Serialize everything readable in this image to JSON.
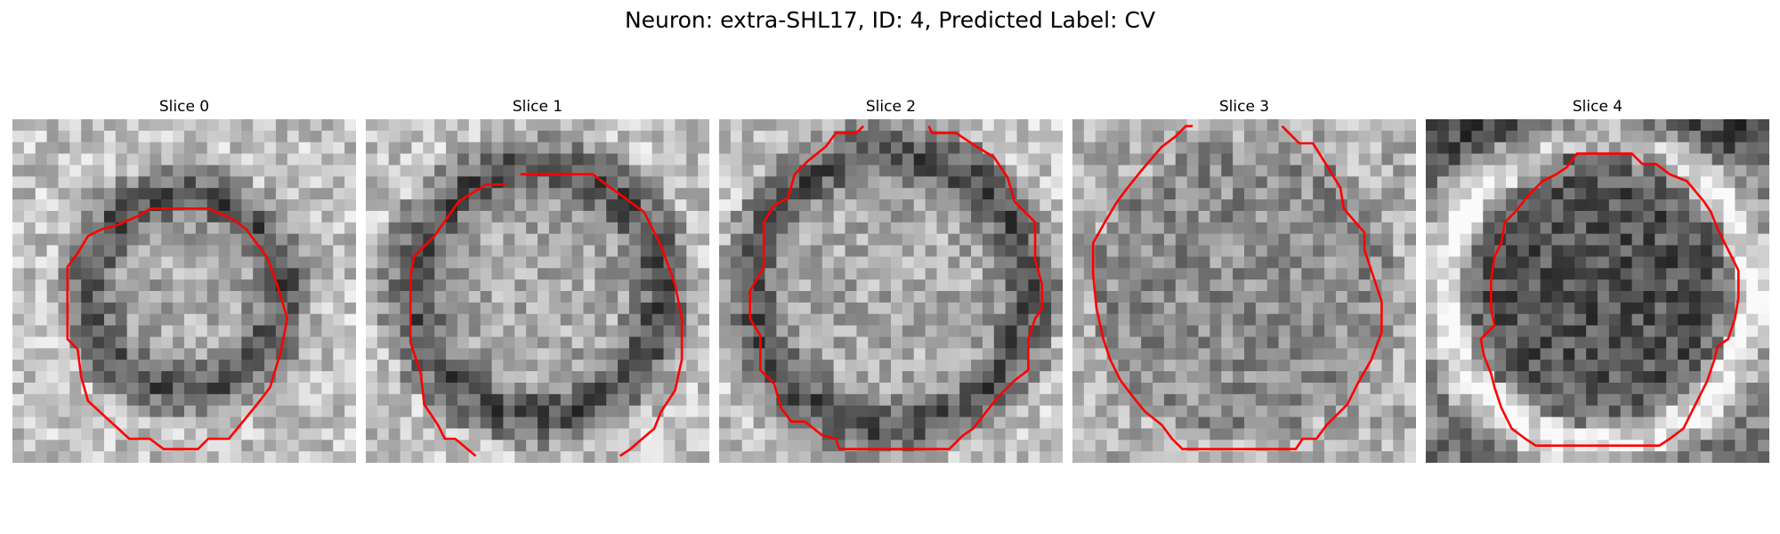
{
  "figure": {
    "title": "Neuron: extra-SHL17, ID: 4, Predicted Label: CV",
    "grid_size": 30,
    "contour_color": "#ff0000",
    "panels": [
      {
        "title": "Slice 0",
        "texture": "ring-dark-small",
        "ring_radius": 0.28,
        "seed": 11,
        "contour": [
          [
            0.4,
            0.26
          ],
          [
            0.57,
            0.26
          ],
          [
            0.64,
            0.29
          ],
          [
            0.68,
            0.32
          ],
          [
            0.74,
            0.4
          ],
          [
            0.77,
            0.48
          ],
          [
            0.8,
            0.58
          ],
          [
            0.78,
            0.68
          ],
          [
            0.75,
            0.78
          ],
          [
            0.72,
            0.82
          ],
          [
            0.63,
            0.93
          ],
          [
            0.57,
            0.93
          ],
          [
            0.54,
            0.96
          ],
          [
            0.44,
            0.96
          ],
          [
            0.4,
            0.93
          ],
          [
            0.34,
            0.93
          ],
          [
            0.22,
            0.82
          ],
          [
            0.2,
            0.75
          ],
          [
            0.19,
            0.67
          ],
          [
            0.16,
            0.64
          ],
          [
            0.16,
            0.43
          ],
          [
            0.19,
            0.39
          ],
          [
            0.22,
            0.34
          ],
          [
            0.26,
            0.32
          ],
          [
            0.3,
            0.31
          ],
          [
            0.37,
            0.28
          ]
        ]
      },
      {
        "title": "Slice 1",
        "texture": "ring-dark-large",
        "ring_radius": 0.36,
        "seed": 23,
        "contour": [
          [
            0.45,
            0.16
          ],
          [
            0.66,
            0.16
          ],
          [
            0.7,
            0.19
          ],
          [
            0.81,
            0.27
          ],
          [
            0.86,
            0.37
          ],
          [
            0.9,
            0.48
          ],
          [
            0.92,
            0.58
          ],
          [
            0.92,
            0.7
          ],
          [
            0.9,
            0.79
          ],
          [
            0.86,
            0.85
          ],
          [
            0.84,
            0.9
          ],
          [
            0.77,
            0.96
          ],
          [
            0.74,
            0.98
          ]
        ],
        "contour_extra": [
          [
            0.32,
            0.98
          ],
          [
            0.26,
            0.93
          ],
          [
            0.23,
            0.93
          ],
          [
            0.21,
            0.89
          ],
          [
            0.17,
            0.83
          ],
          [
            0.16,
            0.74
          ],
          [
            0.13,
            0.65
          ],
          [
            0.13,
            0.46
          ],
          [
            0.14,
            0.4
          ],
          [
            0.18,
            0.36
          ],
          [
            0.2,
            0.34
          ],
          [
            0.27,
            0.24
          ],
          [
            0.35,
            0.19
          ],
          [
            0.41,
            0.19
          ]
        ]
      },
      {
        "title": "Slice 2",
        "texture": "ring-dark-large",
        "ring_radius": 0.4,
        "seed": 37,
        "contour": [
          [
            0.42,
            0.02
          ],
          [
            0.4,
            0.04
          ],
          [
            0.34,
            0.04
          ],
          [
            0.31,
            0.08
          ],
          [
            0.26,
            0.12
          ],
          [
            0.22,
            0.16
          ],
          [
            0.2,
            0.23
          ],
          [
            0.16,
            0.25
          ],
          [
            0.13,
            0.3
          ],
          [
            0.13,
            0.43
          ],
          [
            0.09,
            0.5
          ],
          [
            0.09,
            0.58
          ],
          [
            0.12,
            0.63
          ],
          [
            0.12,
            0.73
          ],
          [
            0.16,
            0.77
          ],
          [
            0.18,
            0.84
          ],
          [
            0.21,
            0.88
          ],
          [
            0.25,
            0.88
          ],
          [
            0.3,
            0.92
          ],
          [
            0.34,
            0.93
          ],
          [
            0.35,
            0.96
          ],
          [
            0.67,
            0.96
          ],
          [
            0.71,
            0.92
          ],
          [
            0.74,
            0.9
          ],
          [
            0.81,
            0.81
          ],
          [
            0.86,
            0.76
          ],
          [
            0.9,
            0.73
          ],
          [
            0.9,
            0.64
          ],
          [
            0.92,
            0.58
          ],
          [
            0.94,
            0.55
          ],
          [
            0.94,
            0.48
          ],
          [
            0.92,
            0.41
          ],
          [
            0.92,
            0.3
          ],
          [
            0.86,
            0.24
          ],
          [
            0.84,
            0.17
          ],
          [
            0.8,
            0.11
          ],
          [
            0.75,
            0.08
          ],
          [
            0.69,
            0.04
          ],
          [
            0.62,
            0.04
          ],
          [
            0.61,
            0.02
          ]
        ]
      },
      {
        "title": "Slice 3",
        "texture": "mottled",
        "ring_radius": 0.44,
        "seed": 51,
        "contour": [
          [
            0.61,
            0.02
          ],
          [
            0.66,
            0.07
          ],
          [
            0.7,
            0.07
          ],
          [
            0.75,
            0.15
          ],
          [
            0.78,
            0.2
          ],
          [
            0.79,
            0.26
          ],
          [
            0.85,
            0.33
          ],
          [
            0.85,
            0.38
          ],
          [
            0.87,
            0.44
          ],
          [
            0.9,
            0.53
          ],
          [
            0.9,
            0.62
          ],
          [
            0.87,
            0.7
          ],
          [
            0.83,
            0.77
          ],
          [
            0.8,
            0.83
          ],
          [
            0.77,
            0.86
          ],
          [
            0.74,
            0.89
          ],
          [
            0.71,
            0.93
          ],
          [
            0.67,
            0.93
          ],
          [
            0.65,
            0.96
          ],
          [
            0.32,
            0.96
          ],
          [
            0.29,
            0.93
          ],
          [
            0.26,
            0.89
          ],
          [
            0.21,
            0.85
          ],
          [
            0.17,
            0.8
          ],
          [
            0.14,
            0.76
          ],
          [
            0.11,
            0.7
          ],
          [
            0.09,
            0.64
          ],
          [
            0.07,
            0.55
          ],
          [
            0.06,
            0.45
          ],
          [
            0.06,
            0.36
          ],
          [
            0.1,
            0.29
          ],
          [
            0.13,
            0.24
          ],
          [
            0.16,
            0.2
          ],
          [
            0.2,
            0.15
          ],
          [
            0.26,
            0.08
          ],
          [
            0.3,
            0.05
          ],
          [
            0.33,
            0.02
          ],
          [
            0.35,
            0.02
          ]
        ]
      },
      {
        "title": "Slice 4",
        "texture": "ring-bright",
        "ring_radius": 0.4,
        "seed": 67,
        "contour": [
          [
            0.44,
            0.1
          ],
          [
            0.6,
            0.1
          ],
          [
            0.63,
            0.13
          ],
          [
            0.67,
            0.13
          ],
          [
            0.71,
            0.16
          ],
          [
            0.76,
            0.18
          ],
          [
            0.81,
            0.24
          ],
          [
            0.83,
            0.27
          ],
          [
            0.85,
            0.32
          ],
          [
            0.88,
            0.38
          ],
          [
            0.91,
            0.44
          ],
          [
            0.91,
            0.52
          ],
          [
            0.9,
            0.58
          ],
          [
            0.88,
            0.64
          ],
          [
            0.85,
            0.66
          ],
          [
            0.84,
            0.7
          ],
          [
            0.82,
            0.76
          ],
          [
            0.8,
            0.8
          ],
          [
            0.78,
            0.84
          ],
          [
            0.75,
            0.9
          ],
          [
            0.71,
            0.93
          ],
          [
            0.68,
            0.95
          ],
          [
            0.32,
            0.95
          ],
          [
            0.29,
            0.93
          ],
          [
            0.25,
            0.9
          ],
          [
            0.22,
            0.84
          ],
          [
            0.2,
            0.78
          ],
          [
            0.19,
            0.74
          ],
          [
            0.17,
            0.69
          ],
          [
            0.16,
            0.64
          ],
          [
            0.2,
            0.6
          ],
          [
            0.19,
            0.55
          ],
          [
            0.19,
            0.47
          ],
          [
            0.2,
            0.4
          ],
          [
            0.22,
            0.36
          ],
          [
            0.23,
            0.3
          ],
          [
            0.26,
            0.27
          ],
          [
            0.3,
            0.22
          ],
          [
            0.34,
            0.18
          ],
          [
            0.38,
            0.16
          ],
          [
            0.41,
            0.14
          ]
        ]
      }
    ]
  }
}
